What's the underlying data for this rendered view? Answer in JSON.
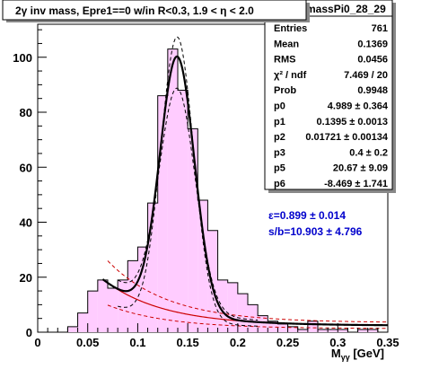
{
  "title": "2γ inv mass, Epre1==0 w/in R<0.3, 1.9 < η < 2.0",
  "stats": {
    "name": "massPi0_28_29",
    "rows": [
      {
        "label": "Entries",
        "value": "761"
      },
      {
        "label": "Mean",
        "value": "0.1369"
      },
      {
        "label": "RMS",
        "value": "0.0456"
      },
      {
        "label": "χ² / ndf",
        "value": "7.469 / 20"
      },
      {
        "label": "Prob",
        "value": "0.9948"
      },
      {
        "label": "p0",
        "value": "4.989 ± 0.364"
      },
      {
        "label": "p1",
        "value": "0.1395 ± 0.0013"
      },
      {
        "label": "p2",
        "value": "0.01721 ± 0.00134"
      },
      {
        "label": "p3",
        "value": "0.4 ± 0.2"
      },
      {
        "label": "p5",
        "value": "20.67 ± 9.09"
      },
      {
        "label": "p6",
        "value": "-8.469 ± 1.741"
      }
    ]
  },
  "annotations": {
    "efficiency": "ε=0.899 ± 0.014",
    "sb": "s/b=10.903 ± 4.796"
  },
  "colors": {
    "histogram_fill": "#ffccff",
    "fit_line": "#000000",
    "background_curve": "#cc0000",
    "annotation_text": "#0000cc"
  },
  "chart_data": {
    "type": "bar",
    "title": "2γ inv mass, Epre1==0 w/in R<0.3, 1.9 < η < 2.0",
    "xlabel": "Mγγ [GeV]",
    "xlim": [
      0,
      0.35
    ],
    "ylim": [
      0,
      112
    ],
    "xticks": [
      0,
      0.05,
      0.1,
      0.15,
      0.2,
      0.25,
      0.3,
      0.35
    ],
    "yticks": [
      0,
      20,
      40,
      60,
      80,
      100
    ],
    "bin_width": 0.01,
    "bins": [
      {
        "x": 0.0,
        "y": 0
      },
      {
        "x": 0.01,
        "y": 0
      },
      {
        "x": 0.02,
        "y": 0
      },
      {
        "x": 0.03,
        "y": 2
      },
      {
        "x": 0.04,
        "y": 7
      },
      {
        "x": 0.05,
        "y": 15
      },
      {
        "x": 0.06,
        "y": 19
      },
      {
        "x": 0.07,
        "y": 16
      },
      {
        "x": 0.08,
        "y": 19
      },
      {
        "x": 0.09,
        "y": 26
      },
      {
        "x": 0.1,
        "y": 31
      },
      {
        "x": 0.11,
        "y": 47
      },
      {
        "x": 0.12,
        "y": 86
      },
      {
        "x": 0.13,
        "y": 103
      },
      {
        "x": 0.14,
        "y": 88
      },
      {
        "x": 0.15,
        "y": 74
      },
      {
        "x": 0.16,
        "y": 48
      },
      {
        "x": 0.17,
        "y": 37
      },
      {
        "x": 0.18,
        "y": 19
      },
      {
        "x": 0.19,
        "y": 18
      },
      {
        "x": 0.2,
        "y": 14
      },
      {
        "x": 0.21,
        "y": 10
      },
      {
        "x": 0.22,
        "y": 6
      },
      {
        "x": 0.23,
        "y": 4
      },
      {
        "x": 0.24,
        "y": 3
      },
      {
        "x": 0.25,
        "y": 2
      },
      {
        "x": 0.26,
        "y": 1
      },
      {
        "x": 0.27,
        "y": 4
      },
      {
        "x": 0.28,
        "y": 1
      },
      {
        "x": 0.29,
        "y": 1
      },
      {
        "x": 0.3,
        "y": 1
      },
      {
        "x": 0.31,
        "y": 0
      },
      {
        "x": 0.32,
        "y": 1
      },
      {
        "x": 0.33,
        "y": 1
      },
      {
        "x": 0.34,
        "y": 0
      }
    ],
    "fit": {
      "x_range": [
        0.065,
        0.35
      ],
      "gauss_amplitude": 4.989,
      "gauss_mean": 0.1395,
      "gauss_sigma": 0.01721,
      "background_range": [
        0.07,
        0.35
      ]
    }
  }
}
